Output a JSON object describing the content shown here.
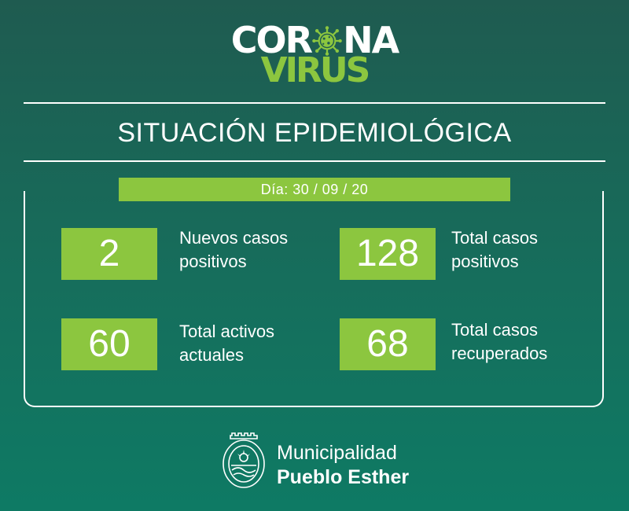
{
  "logo": {
    "corona_prefix": "COR",
    "corona_suffix": "NA",
    "virus": "VIRUS",
    "icon": "virus-icon"
  },
  "title": "SITUACIÓN EPIDEMIOLÓGICA",
  "date": "Día: 30 / 09 / 20",
  "stats": {
    "new_cases": {
      "value": "2",
      "label_line1": "Nuevos casos",
      "label_line2": "positivos"
    },
    "total_positive": {
      "value": "128",
      "label_line1": "Total casos",
      "label_line2": "positivos"
    },
    "active": {
      "value": "60",
      "label_line1": "Total activos",
      "label_line2": "actuales"
    },
    "recovered": {
      "value": "68",
      "label_line1": "Total casos",
      "label_line2": "recuperados"
    }
  },
  "footer": {
    "line1": "Municipalidad",
    "line2": "Pueblo Esther",
    "seal_icon": "municipal-seal-icon"
  },
  "colors": {
    "accent_green": "#8cc63f",
    "background_top": "#1f5b50",
    "background_bottom": "#0e7a64",
    "text": "#ffffff"
  }
}
